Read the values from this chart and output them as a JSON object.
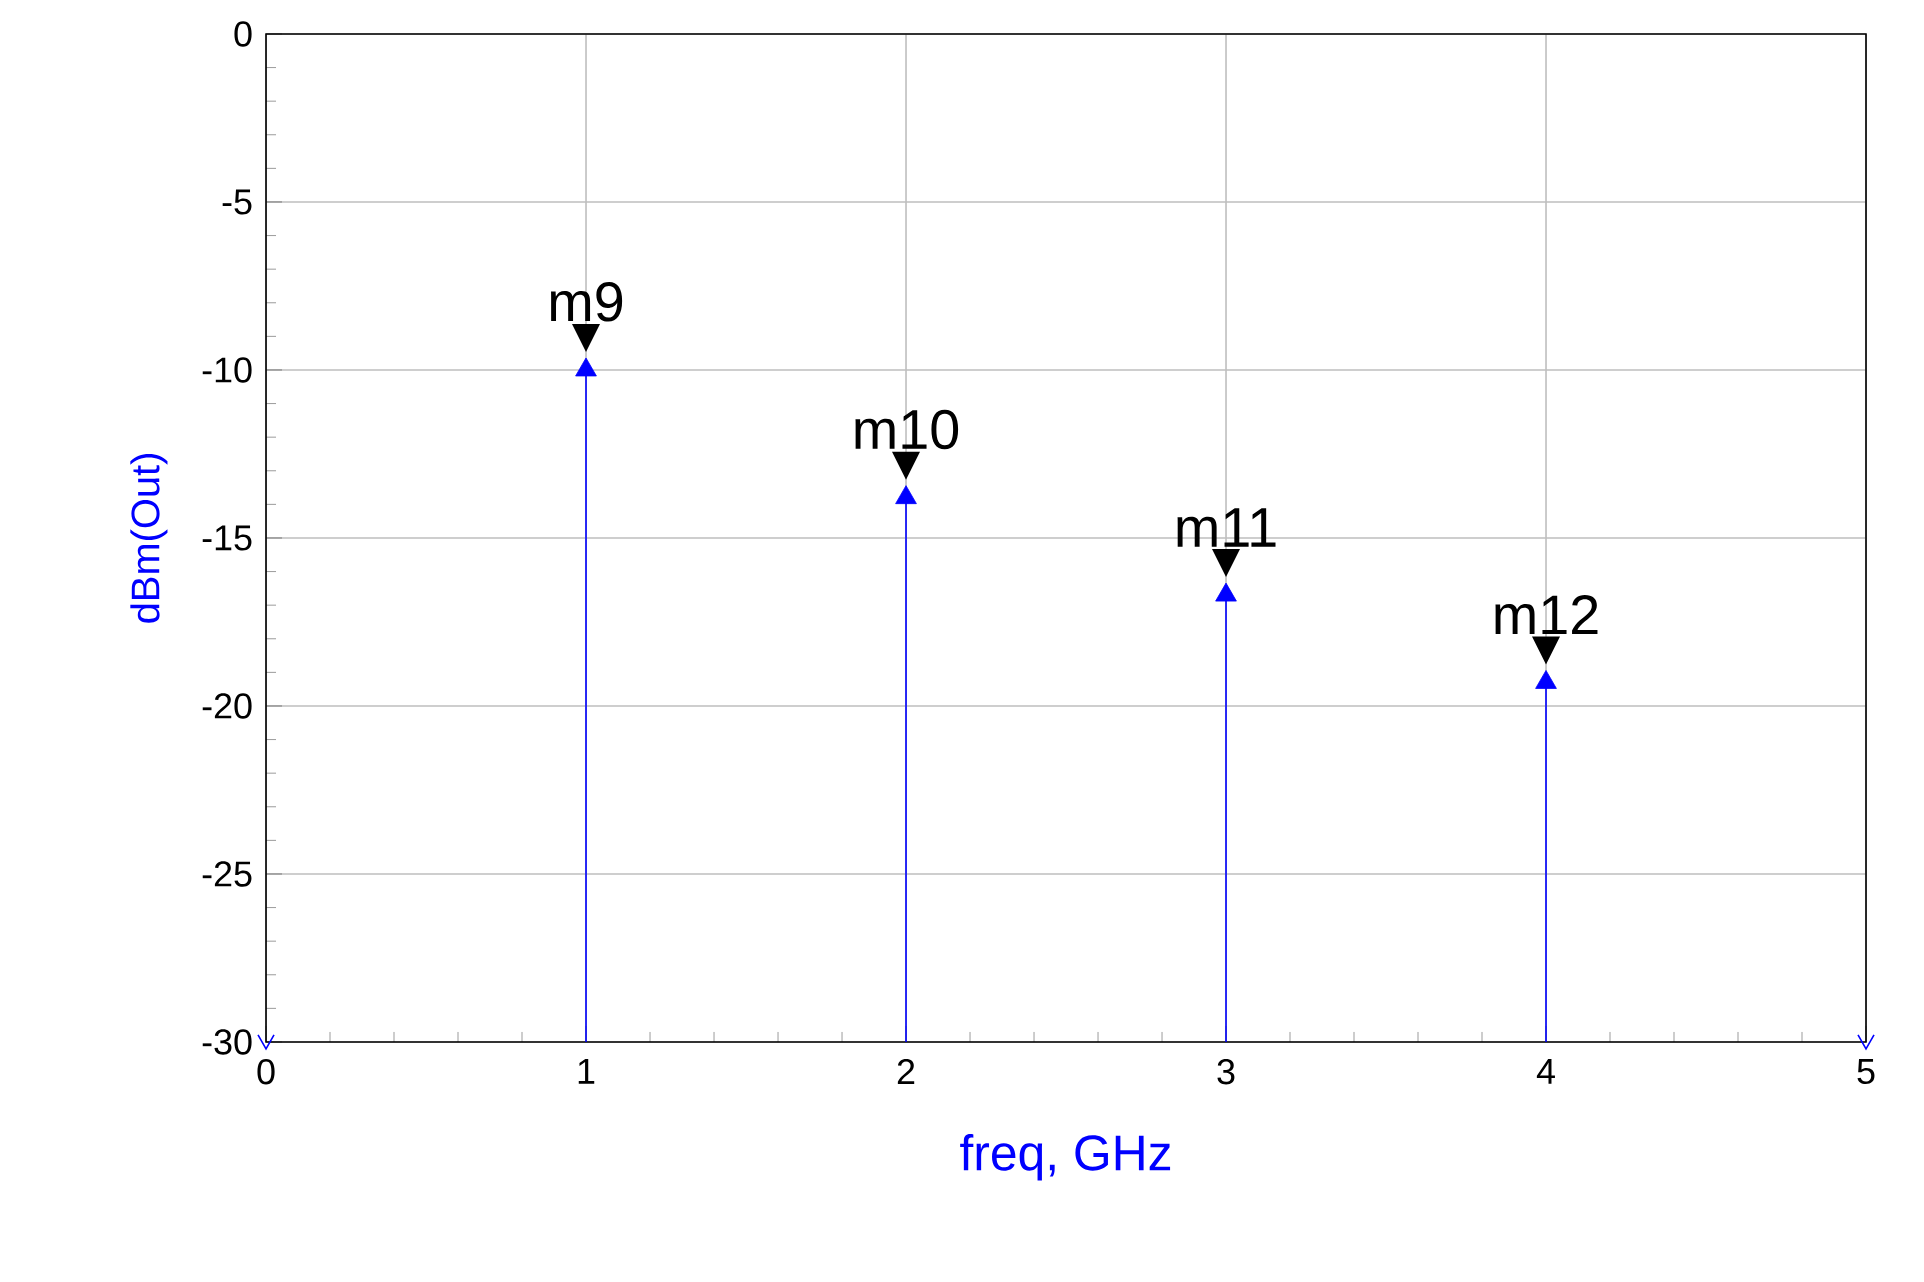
{
  "chart_data": {
    "type": "lollipop",
    "xlabel": "freq, GHz",
    "ylabel": "dBm(Out)",
    "x": [
      0,
      1,
      2,
      3,
      4,
      5
    ],
    "values": [
      -30,
      -10,
      -13.8,
      -16.7,
      -19.3,
      -30
    ],
    "color": "#0000ff",
    "grid": true,
    "xlim": [
      0,
      5
    ],
    "ylim": [
      -30,
      0
    ],
    "xticks": [
      0,
      1,
      2,
      3,
      4,
      5
    ],
    "yticks": [
      -30,
      -25,
      -20,
      -15,
      -10,
      -5,
      0
    ],
    "annotations": [
      {
        "text": "m9",
        "x": 1,
        "y": -10
      },
      {
        "text": "m10",
        "x": 2,
        "y": -13.8
      },
      {
        "text": "m11",
        "x": 3,
        "y": -16.7
      },
      {
        "text": "m12",
        "x": 4,
        "y": -19.3
      }
    ]
  }
}
